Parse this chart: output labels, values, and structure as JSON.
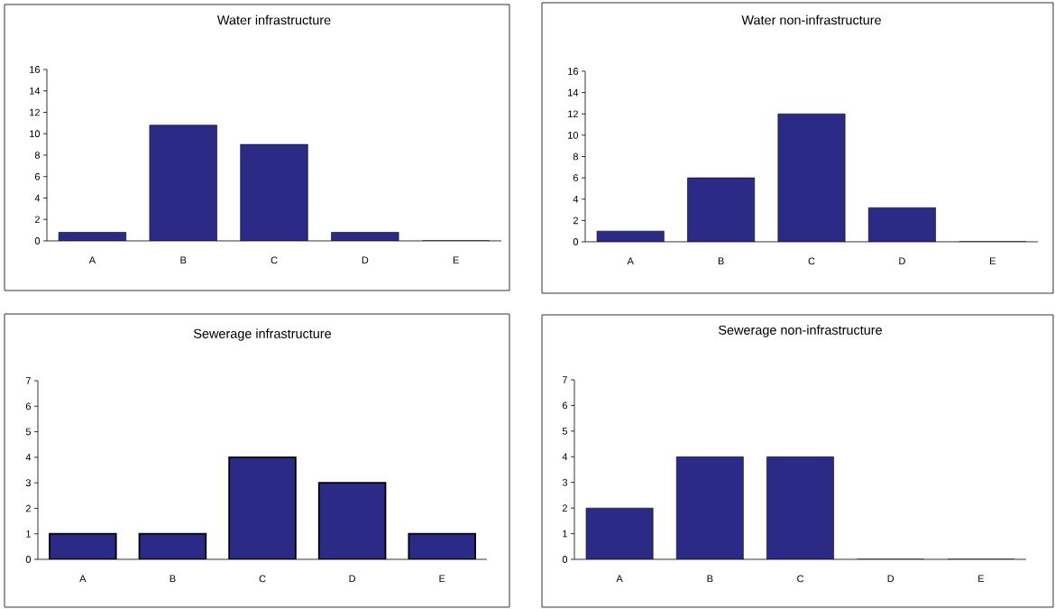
{
  "chart_data": [
    {
      "type": "bar",
      "title": "Water infrastructure",
      "categories": [
        "A",
        "B",
        "C",
        "D",
        "E"
      ],
      "values": [
        0.8,
        10.8,
        9,
        0.8,
        0
      ],
      "color": "#2b2b87",
      "ylim": [
        0,
        16
      ],
      "yticks": [
        0,
        2,
        4,
        6,
        8,
        10,
        12,
        14,
        16
      ]
    },
    {
      "type": "bar",
      "title": "Water non-infrastructure",
      "categories": [
        "A",
        "B",
        "C",
        "D",
        "E"
      ],
      "values": [
        1,
        6,
        12,
        3.2,
        0
      ],
      "color": "#2b2b87",
      "ylim": [
        0,
        16
      ],
      "yticks": [
        0,
        2,
        4,
        6,
        8,
        10,
        12,
        14,
        16
      ]
    },
    {
      "type": "bar",
      "title": "Sewerage infrastructure",
      "categories": [
        "A",
        "B",
        "C",
        "D",
        "E"
      ],
      "values": [
        1,
        1,
        4,
        3,
        1
      ],
      "color": "#2b2b87",
      "ylim": [
        0,
        7
      ],
      "yticks": [
        0,
        1,
        2,
        3,
        4,
        5,
        6,
        7
      ]
    },
    {
      "type": "bar",
      "title": "Sewerage non-infrastructure",
      "categories": [
        "A",
        "B",
        "C",
        "D",
        "E"
      ],
      "values": [
        2,
        4,
        4,
        0,
        0
      ],
      "color": "#2b2b87",
      "ylim": [
        0,
        7
      ],
      "yticks": [
        0,
        1,
        2,
        3,
        4,
        5,
        6,
        7
      ]
    }
  ]
}
